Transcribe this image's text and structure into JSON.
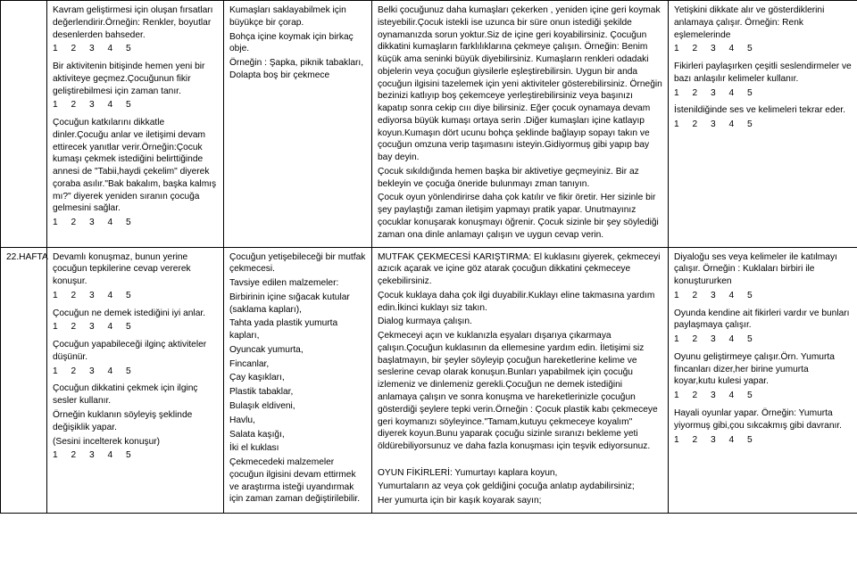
{
  "scale": "1 2 3 4 5",
  "weekLabel": "22.HAFTA",
  "row1": {
    "col1": {
      "p1": "Kavram geliştirmesi için oluşan fırsatları değerlendirir.Örneğin: Renkler, boyutlar desenlerden bahseder.",
      "p2": "Bir aktivitenin bitişinde hemen yeni bir aktiviteye geçmez.Çocuğunun fikir geliştirebilmesi için zaman tanır.",
      "p3": "Çocuğun katkılarını dikkatle dinler.Çocuğu anlar ve iletişimi devam ettirecek yanıtlar verir.Örneğin:Çocuk kumaşı çekmek istediğini belirttiğinde annesi de \"Tabii,haydi çekelim\" diyerek çoraba asılır.\"Bak bakalım, başka kalmış mı?\" diyerek yeniden sıranın çocuğa gelmesini sağlar."
    },
    "col2": {
      "p1": "Kumaşları saklayabilmek için büyükçe bir çorap.",
      "p2": "Bohça içine koymak için birkaç obje.",
      "p3": "Örneğin : Şapka, piknik tabakları, Dolapta boş bir çekmece"
    },
    "col3": {
      "p1": "Belki çocuğunuz daha kumaşları çekerken ,  yeniden içine geri koymak isteyebilir.Çocuk istekli ise uzunca bir süre onun istediği şekilde oynamanızda sorun yoktur.Siz de içine geri koyabilirsiniz. Çocuğun dikkatini kumaşların farklılıklarına çekmeye çalışın. Örneğin: Benim küçük ama seninki büyük diyebilirsiniz. Kumaşların renkleri odadaki objelerin veya çocuğun giysilerle eşleştirebilirsin. Uygun bir anda çocuğun ilgisini tazelemek için yeni aktiviteler gösterebilirsiniz. Örneğin bezinizi katlıyıp boş çekemceye yerleştirebilirsiniz veya başınızı kapatıp sonra cekip cııı diye bilirsiniz. Eğer çocuk oynamaya devam ediyorsa büyük kumaşı ortaya serin .Diğer kumaşları içine katlayıp koyun.Kumaşın dört ucunu bohça şeklinde bağlayıp sopayı takın ve çocuğun omzuna verip taşımasını isteyin.Gidiyormuş gibi yapıp bay bay deyin.",
      "p2": "Çocuk sıkıldığında hemen başka bir aktivetiye geçmeyiniz. Bir az bekleyin ve çocuğa öneride bulunmayı zman tanıyın.",
      "p3": "Çocuk oyun yönlendirirse  daha çok katılır ve fikir öretir. Her sizinle bir şey paylaştığı zaman iletişim yapmayı pratik yapar. Unutmayınız çocuklar konuşarak konuşmayı öğrenir. Çocuk sizinle bir şey söylediği zaman ona dinle anlamayı çalışın ve uygun cevap verin."
    },
    "col4": {
      "p1": "Yetişkini dikkate alır ve gösterdiklerini anlamaya çalışır. Örneğin: Renk eşlemelerinde",
      "p2": "Fikirleri paylaşırken çeşitli seslendirmeler ve bazı anlaşılır kelimeler kullanır.",
      "p3": "İstenildiğinde ses ve kelimeleri tekrar eder."
    }
  },
  "row2": {
    "col1": {
      "p1": "Devamlı konuşmaz, bunun yerine çocuğun tepkilerine cevap vererek konuşur.",
      "p2": "Çocuğun ne demek istediğini iyi anlar.",
      "p3": "Çocuğun yapabileceği ilginç aktiviteler düşünür.",
      "p4": "Çocuğun dikkatini çekmek için ilginç sesler kullanır.",
      "p5": "Örneğin kuklanın söyleyiş şeklinde değişiklik yapar.",
      "p6": "(Sesini incelterek konuşur)"
    },
    "col2": {
      "p1": "Çocuğun yetişebileceği bir mutfak çekmecesi.",
      "p2": "Tavsiye edilen malzemeler:",
      "l1": "Birbirinin içine sığacak kutular (saklama kapları),",
      "l2": "Tahta yada plastik yumurta kapları,",
      "l3": "Oyuncak yumurta,",
      "l4": "Fincanlar,",
      "l5": "Çay kaşıkları,",
      "l6": "Plastik tabaklar,",
      "l7": "Bulaşık eldiveni,",
      "l8": "Havlu,",
      "l9": "Salata kaşığı,",
      "l10": "İki el kuklası",
      "p3": "Çekmecedeki malzemeler çocuğun ilgisini devam ettirmek ve araştırma isteği uyandırmak için zaman zaman değiştirilebilir."
    },
    "col3": {
      "p1": "MUTFAK ÇEKMECESİ KARIŞTIRMA: El kuklasını giyerek, çekmeceyi azıcık açarak ve içine göz atarak  çocuğun dikkatini çekmeceye çekebilirsiniz.",
      "p2": "Çocuk kuklaya daha çok ilgi duyabilir.Kuklayı eline takmasına yardım edin.İkinci kuklayı siz takın.",
      "p3": "Dialog kurmaya çalışın.",
      "p4": "Çekmeceyi açın ve kuklanızla eşyaları dışarıya çıkarmaya çalışın.Çocuğun kuklasının da ellemesine yardım edin. İletişimi siz başlatmayın, bir şeyler söyleyip çocuğun hareketlerine kelime ve seslerine cevap olarak konuşun.Bunları yapabilmek için çocuğu izlemeniz ve dinlemeniz gerekli.Çocuğun ne demek istediğini anlamaya çalışın ve sonra konuşma ve hareketlerinizle çocuğun gösterdiği şeylere tepki verin.Örneğin : Çocuk plastik kabı çekmeceye geri koymanızı söyleyince.\"Tamam,kutuyu çekmeceye koyalım\" diyerek koyun.Bunu yaparak çocuğu sizinle sıranızı bekleme yeti öldürebiliyorsunuz ve daha fazla konuşması için teşvik ediyorsunuz.",
      "p5": "OYUN FİKİRLERİ: Yumurtayı kaplara koyun,",
      "p6": "Yumurtaların az veya çok geldiğini çocuğa anlatıp aydabilirsiniz;",
      "p7": "Her yumurta için bir kaşık koyarak sayın;"
    },
    "col4": {
      "p1": "Diyaloğu ses veya kelimeler ile katılmayı çalışır. Örneğin : Kuklaları birbiri ile konuştururken",
      "p2": "Oyunda kendine ait fikirleri vardır ve bunları paylaşmaya çalışır.",
      "p3": "Oyunu geliştirmeye çalışır.Örn. Yumurta fincanları dizer,her birine yumurta koyar,kutu kulesi yapar.",
      "p4": "Hayali oyunlar yapar. Örneğin: Yumurta yiyormuş gibi,çou sıkcakmış gibi davranır."
    }
  }
}
